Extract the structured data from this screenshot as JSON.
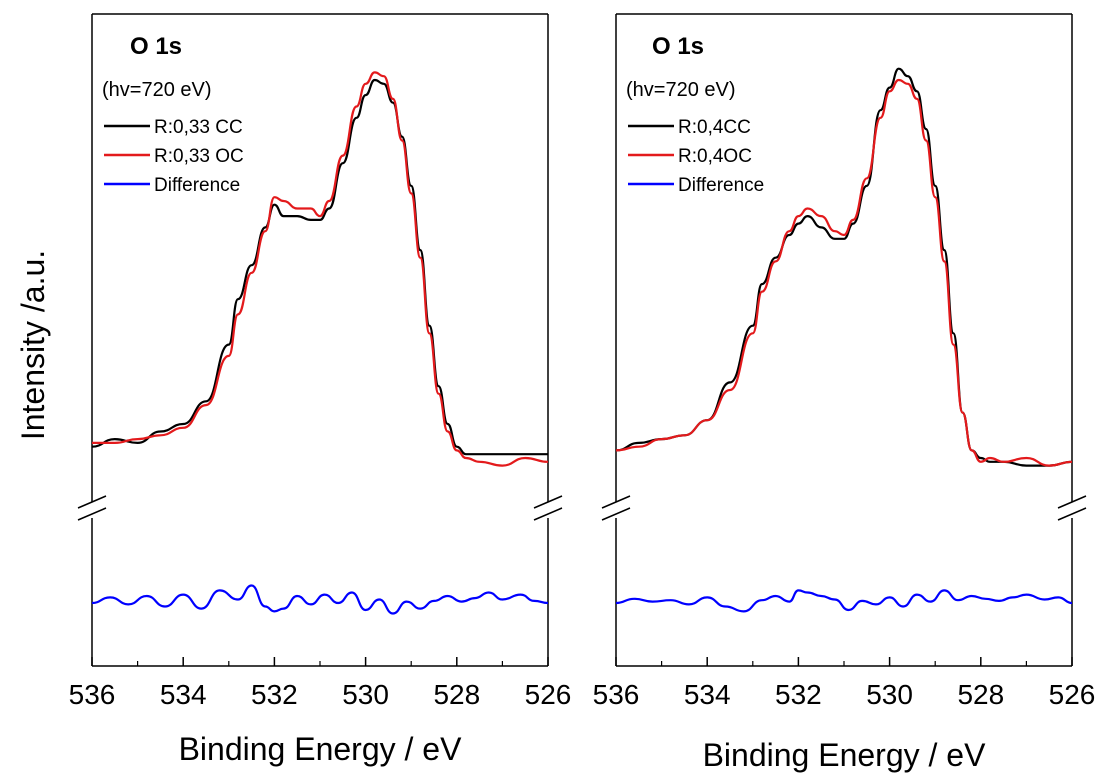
{
  "figure": {
    "ylabel": "Intensity /a.u."
  },
  "chart_data": [
    {
      "type": "line",
      "title": "O 1s",
      "annotation": "(hv=720 eV)",
      "xlabel": "Binding Energy / eV",
      "ylabel": "Intensity /a.u.",
      "xlim": [
        536,
        526
      ],
      "x_ticks": [
        "536",
        "534",
        "532",
        "530",
        "528",
        "526"
      ],
      "y_ticks_labeled": false,
      "axis_break": true,
      "grid": false,
      "legend_placement": "top-left",
      "series": [
        {
          "name": "R:0,33 CC",
          "color": "#000000",
          "x": [
            536.0,
            535.5,
            535.0,
            534.5,
            534.0,
            533.5,
            533.0,
            532.8,
            532.5,
            532.2,
            532.0,
            531.8,
            531.5,
            531.2,
            531.0,
            530.8,
            530.5,
            530.2,
            530.0,
            529.8,
            529.6,
            529.4,
            529.2,
            529.0,
            528.8,
            528.6,
            528.4,
            528.2,
            528.0,
            527.8,
            527.5,
            527.0,
            526.5,
            526.0
          ],
          "y": [
            0.03,
            0.05,
            0.04,
            0.07,
            0.09,
            0.15,
            0.3,
            0.42,
            0.51,
            0.61,
            0.67,
            0.64,
            0.64,
            0.63,
            0.63,
            0.66,
            0.78,
            0.9,
            0.96,
            1.0,
            0.99,
            0.94,
            0.85,
            0.72,
            0.55,
            0.35,
            0.19,
            0.09,
            0.03,
            0.01,
            0.01,
            0.01,
            0.01,
            0.01
          ]
        },
        {
          "name": "R:0,33 OC",
          "color": "#e31a1c",
          "x": [
            536.0,
            535.5,
            535.0,
            534.5,
            534.0,
            533.5,
            533.0,
            532.8,
            532.5,
            532.2,
            532.0,
            531.8,
            531.5,
            531.2,
            531.0,
            530.8,
            530.5,
            530.2,
            530.0,
            529.8,
            529.6,
            529.4,
            529.2,
            529.0,
            528.8,
            528.6,
            528.4,
            528.2,
            528.0,
            527.8,
            527.5,
            527.0,
            526.5,
            526.0
          ],
          "y": [
            0.04,
            0.04,
            0.05,
            0.06,
            0.08,
            0.14,
            0.27,
            0.38,
            0.49,
            0.6,
            0.69,
            0.68,
            0.66,
            0.66,
            0.64,
            0.68,
            0.8,
            0.93,
            0.99,
            1.02,
            1.01,
            0.95,
            0.84,
            0.7,
            0.53,
            0.33,
            0.17,
            0.07,
            0.02,
            0.0,
            -0.01,
            -0.02,
            0.0,
            -0.01
          ]
        },
        {
          "name": "Difference",
          "color": "#0000ff",
          "region": "lower",
          "x": [
            536.0,
            535.6,
            535.2,
            534.8,
            534.4,
            534.0,
            533.6,
            533.2,
            532.8,
            532.5,
            532.2,
            532.0,
            531.8,
            531.5,
            531.2,
            530.9,
            530.6,
            530.3,
            530.0,
            529.7,
            529.4,
            529.1,
            528.8,
            528.5,
            528.2,
            527.9,
            527.6,
            527.3,
            527.0,
            526.6,
            526.3,
            526.0
          ],
          "y": [
            0.0,
            0.08,
            -0.02,
            0.1,
            -0.05,
            0.12,
            -0.08,
            0.18,
            0.05,
            0.25,
            -0.05,
            -0.12,
            -0.08,
            0.1,
            -0.02,
            0.12,
            0.0,
            0.15,
            -0.1,
            0.05,
            -0.15,
            0.02,
            -0.08,
            0.03,
            0.1,
            0.02,
            0.07,
            0.15,
            0.05,
            0.12,
            0.03,
            0.0
          ]
        }
      ]
    },
    {
      "type": "line",
      "title": "O 1s",
      "annotation": "(hv=720 eV)",
      "xlabel": "Binding Energy / eV",
      "ylabel": "",
      "xlim": [
        536,
        526
      ],
      "x_ticks": [
        "536",
        "534",
        "532",
        "530",
        "528",
        "526"
      ],
      "y_ticks_labeled": false,
      "axis_break": true,
      "grid": false,
      "legend_placement": "top-left",
      "series": [
        {
          "name": "R:0,4CC",
          "color": "#000000",
          "x": [
            536.0,
            535.5,
            535.0,
            534.5,
            534.0,
            533.5,
            533.0,
            532.8,
            532.5,
            532.2,
            532.0,
            531.8,
            531.5,
            531.2,
            531.0,
            530.8,
            530.5,
            530.2,
            530.0,
            529.8,
            529.6,
            529.4,
            529.2,
            529.0,
            528.8,
            528.6,
            528.4,
            528.2,
            528.0,
            527.8,
            527.5,
            527.0,
            526.5,
            526.0
          ],
          "y": [
            0.02,
            0.04,
            0.05,
            0.06,
            0.1,
            0.2,
            0.35,
            0.46,
            0.53,
            0.59,
            0.62,
            0.64,
            0.61,
            0.58,
            0.58,
            0.62,
            0.72,
            0.92,
            0.98,
            1.03,
            1.01,
            0.97,
            0.87,
            0.72,
            0.55,
            0.33,
            0.12,
            0.02,
            0.0,
            -0.01,
            -0.01,
            -0.02,
            -0.02,
            -0.01
          ]
        },
        {
          "name": "R:0,4OC",
          "color": "#e31a1c",
          "x": [
            536.0,
            535.5,
            535.0,
            534.5,
            534.0,
            533.5,
            533.0,
            532.8,
            532.5,
            532.2,
            532.0,
            531.8,
            531.5,
            531.2,
            531.0,
            530.8,
            530.5,
            530.2,
            530.0,
            529.8,
            529.6,
            529.4,
            529.2,
            529.0,
            528.8,
            528.6,
            528.4,
            528.2,
            528.0,
            527.8,
            527.5,
            527.0,
            526.5,
            526.0
          ],
          "y": [
            0.02,
            0.03,
            0.05,
            0.06,
            0.1,
            0.18,
            0.33,
            0.44,
            0.52,
            0.6,
            0.64,
            0.66,
            0.64,
            0.6,
            0.59,
            0.63,
            0.74,
            0.9,
            0.97,
            1.0,
            0.99,
            0.95,
            0.84,
            0.69,
            0.52,
            0.3,
            0.12,
            0.02,
            -0.01,
            0.0,
            -0.01,
            0.0,
            -0.02,
            -0.01
          ]
        },
        {
          "name": "Difference",
          "color": "#0000ff",
          "region": "lower",
          "x": [
            536.0,
            535.6,
            535.2,
            534.8,
            534.4,
            534.0,
            533.6,
            533.2,
            532.8,
            532.5,
            532.2,
            532.0,
            531.8,
            531.5,
            531.2,
            530.9,
            530.6,
            530.3,
            530.0,
            529.7,
            529.4,
            529.1,
            528.8,
            528.5,
            528.2,
            527.9,
            527.6,
            527.3,
            527.0,
            526.6,
            526.3,
            526.0
          ],
          "y": [
            0.0,
            0.06,
            0.02,
            0.04,
            -0.02,
            0.08,
            -0.05,
            -0.12,
            0.04,
            0.1,
            0.02,
            0.18,
            0.15,
            0.1,
            0.05,
            -0.1,
            0.03,
            -0.02,
            0.08,
            -0.05,
            0.12,
            0.02,
            0.18,
            0.04,
            0.1,
            0.06,
            0.03,
            0.08,
            0.12,
            0.05,
            0.08,
            0.0
          ]
        }
      ]
    }
  ]
}
